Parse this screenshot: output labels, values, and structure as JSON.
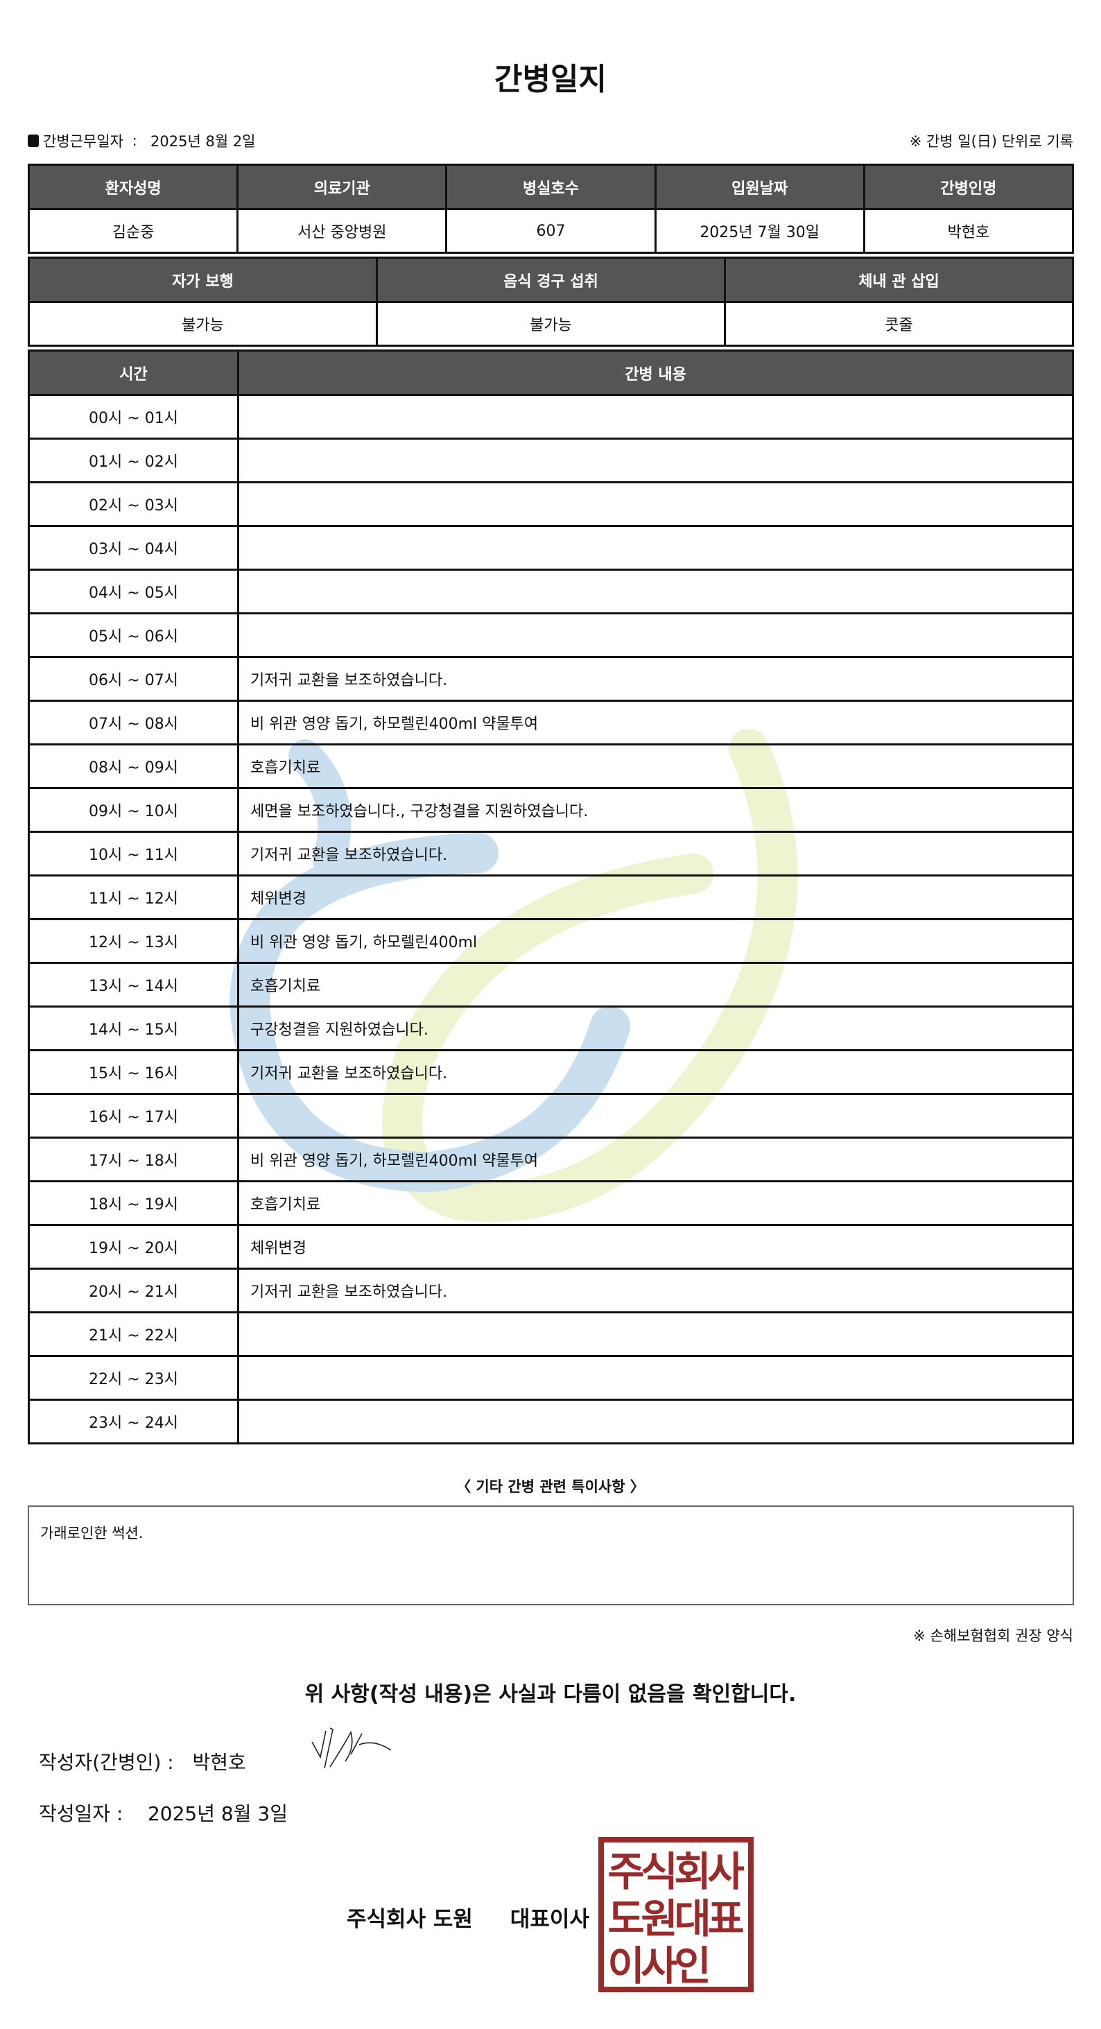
{
  "title": "간병일지",
  "work_date_label": "간병근무일자",
  "work_date": "2025년 8월 2일",
  "unit_note": "※ 간병 일(日) 단위로 기록",
  "info_headers": [
    "환자성명",
    "의료기관",
    "병실호수",
    "입원날짜",
    "간병인명"
  ],
  "info_values": [
    "김순중",
    "서산 중앙병원",
    "607",
    "2025년 7월 30일",
    "박현호"
  ],
  "status_headers": [
    "자가 보행",
    "음식 경구 섭취",
    "체내 관 삽입"
  ],
  "status_values": [
    "불가능",
    "불가능",
    "콧줄"
  ],
  "log_headers": [
    "시간",
    "간병 내용"
  ],
  "log": [
    {
      "time": "00시 ~ 01시",
      "content": ""
    },
    {
      "time": "01시 ~ 02시",
      "content": ""
    },
    {
      "time": "02시 ~ 03시",
      "content": ""
    },
    {
      "time": "03시 ~ 04시",
      "content": ""
    },
    {
      "time": "04시 ~ 05시",
      "content": ""
    },
    {
      "time": "05시 ~ 06시",
      "content": ""
    },
    {
      "time": "06시 ~ 07시",
      "content": "기저귀 교환을 보조하였습니다."
    },
    {
      "time": "07시 ~ 08시",
      "content": "비 위관 영양 돕기, 하모렐린400ml 약물투여"
    },
    {
      "time": "08시 ~ 09시",
      "content": "호흡기치료"
    },
    {
      "time": "09시 ~ 10시",
      "content": "세면을 보조하였습니다., 구강청결을 지원하였습니다."
    },
    {
      "time": "10시 ~ 11시",
      "content": "기저귀 교환을 보조하였습니다."
    },
    {
      "time": "11시 ~ 12시",
      "content": "체위변경"
    },
    {
      "time": "12시 ~ 13시",
      "content": "비 위관 영양 돕기, 하모렐린400ml"
    },
    {
      "time": "13시 ~ 14시",
      "content": "호흡기치료"
    },
    {
      "time": "14시 ~ 15시",
      "content": "구강청결을 지원하였습니다."
    },
    {
      "time": "15시 ~ 16시",
      "content": "기저귀 교환을 보조하였습니다."
    },
    {
      "time": "16시 ~ 17시",
      "content": ""
    },
    {
      "time": "17시 ~ 18시",
      "content": "비 위관 영양 돕기, 하모렐린400ml 약물투여"
    },
    {
      "time": "18시 ~ 19시",
      "content": "호흡기치료"
    },
    {
      "time": "19시 ~ 20시",
      "content": "체위변경"
    },
    {
      "time": "20시 ~ 21시",
      "content": "기저귀 교환을 보조하였습니다."
    },
    {
      "time": "21시 ~ 22시",
      "content": ""
    },
    {
      "time": "22시 ~ 23시",
      "content": ""
    },
    {
      "time": "23시 ~ 24시",
      "content": ""
    }
  ],
  "notes_title": "〈 기타 간병 관련 특이사항 〉",
  "notes": "가래로인한 썩션.",
  "association_note": "※ 손해보험협회 권장 양식",
  "confirm_statement": "위 사항(작성 내용)은 사실과 다름이 없음을 확인합니다.",
  "writer_label": "작성자(간병인) :",
  "writer_name": "박현호",
  "write_date_label": "작성일자 :",
  "write_date": "2025년 8월 3일",
  "company": "주식회사 도원",
  "ceo_title": "대표이사",
  "stamp_text": "주식회사도원대표이사인",
  "colors": {
    "header_bg": "#555555",
    "stamp": "#9a2a2a",
    "watermark_blue": "#c9dff0",
    "watermark_green": "#eef3d0"
  }
}
